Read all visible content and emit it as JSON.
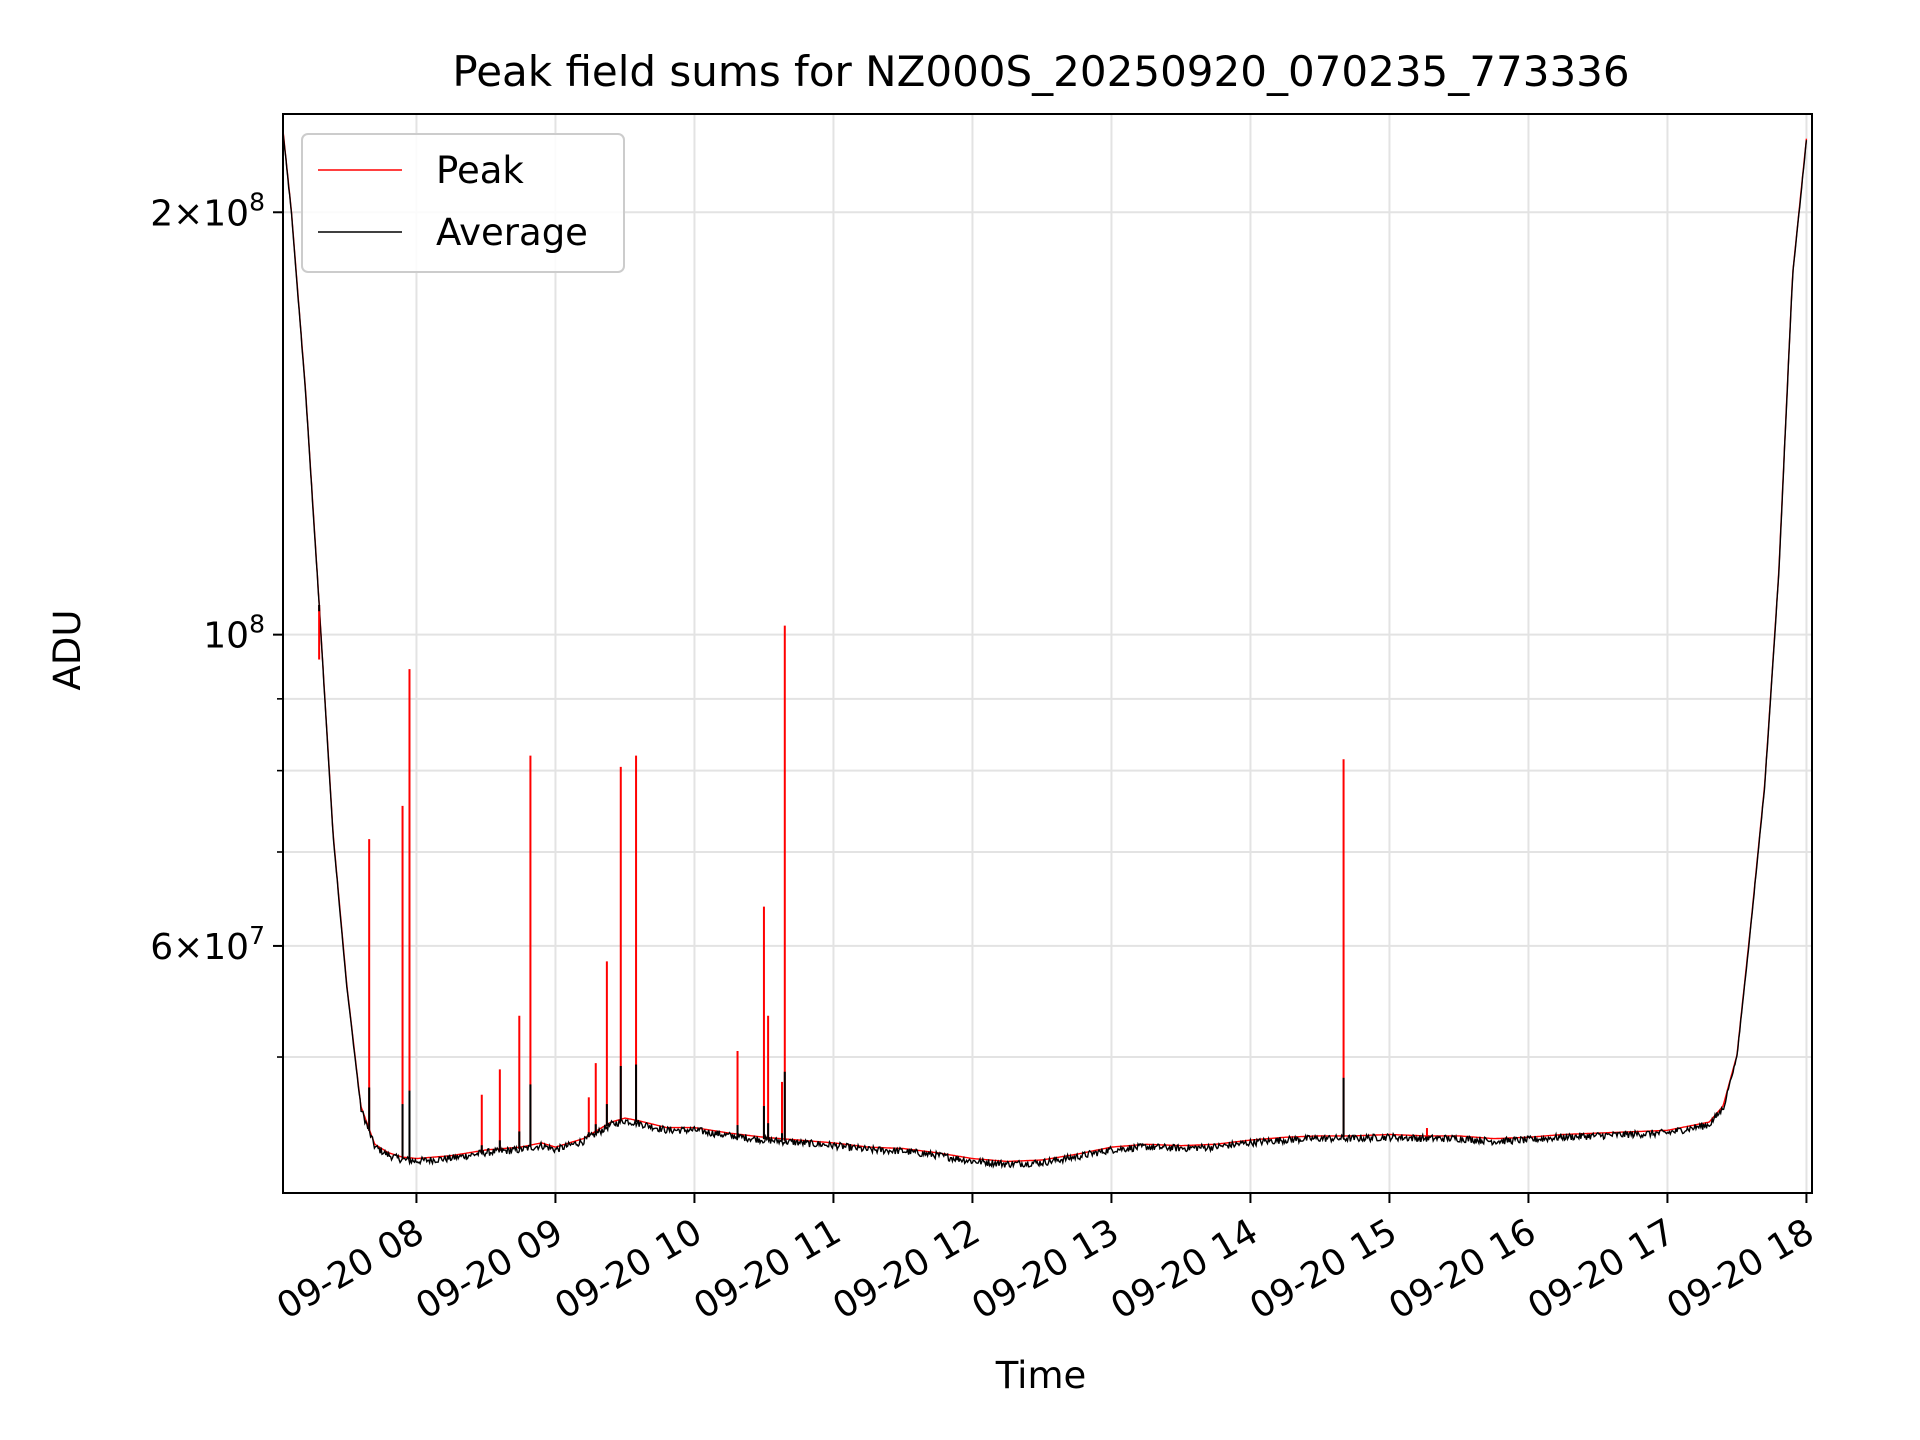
{
  "chart_data": {
    "type": "line",
    "title": "Peak field sums for NZ000S_20250920_070235_773336",
    "xlabel": "Time",
    "ylabel": "ADU",
    "x_unit": "hours",
    "y_scale": "log",
    "xlim": [
      7.04,
      18.04
    ],
    "ylim": [
      40000000,
      235000000
    ],
    "grid": true,
    "legend_position": "upper left",
    "x_ticks": [
      {
        "value": 8,
        "label": "09-20 08"
      },
      {
        "value": 9,
        "label": "09-20 09"
      },
      {
        "value": 10,
        "label": "09-20 10"
      },
      {
        "value": 11,
        "label": "09-20 11"
      },
      {
        "value": 12,
        "label": "09-20 12"
      },
      {
        "value": 13,
        "label": "09-20 13"
      },
      {
        "value": 14,
        "label": "09-20 14"
      },
      {
        "value": 15,
        "label": "09-20 15"
      },
      {
        "value": 16,
        "label": "09-20 16"
      },
      {
        "value": 17,
        "label": "09-20 17"
      },
      {
        "value": 18,
        "label": "09-20 18"
      }
    ],
    "y_ticks": [
      {
        "value": 60000000,
        "base": "6×10",
        "exp": "7"
      },
      {
        "value": 100000000,
        "base": "10",
        "exp": "8"
      },
      {
        "value": 200000000,
        "base": "2×10",
        "exp": "8"
      }
    ],
    "y_minor_ticks": [
      50000000,
      70000000,
      80000000,
      90000000
    ],
    "series": [
      {
        "name": "Average",
        "color": "#000000",
        "x": [
          7.04,
          7.1,
          7.2,
          7.3,
          7.4,
          7.5,
          7.6,
          7.7,
          7.8,
          7.9,
          8.0,
          8.25,
          8.5,
          8.75,
          8.9,
          9.0,
          9.2,
          9.4,
          9.5,
          9.6,
          9.8,
          10.0,
          10.25,
          10.5,
          10.75,
          11.0,
          11.25,
          11.5,
          11.75,
          12.0,
          12.25,
          12.5,
          12.75,
          13.0,
          13.25,
          13.5,
          13.75,
          14.0,
          14.25,
          14.5,
          14.75,
          15.0,
          15.25,
          15.5,
          15.75,
          16.0,
          16.25,
          16.5,
          16.75,
          17.0,
          17.15,
          17.3,
          17.4,
          17.5,
          17.6,
          17.7,
          17.8,
          17.9,
          18.0
        ],
        "y": [
          228000000,
          200000000,
          150000000,
          105000000,
          72000000,
          56000000,
          46000000,
          43200000,
          42600000,
          42300000,
          42200000,
          42400000,
          42800000,
          43000000,
          43300000,
          43000000,
          43600000,
          44800000,
          45100000,
          44900000,
          44400000,
          44400000,
          44000000,
          43700000,
          43500000,
          43300000,
          43000000,
          42900000,
          42600000,
          42200000,
          42000000,
          42100000,
          42500000,
          43000000,
          43200000,
          43100000,
          43200000,
          43500000,
          43700000,
          43800000,
          43800000,
          43900000,
          43800000,
          43800000,
          43600000,
          43700000,
          43900000,
          44000000,
          44100000,
          44200000,
          44500000,
          44800000,
          46000000,
          50000000,
          62000000,
          78000000,
          110000000,
          180000000,
          225000000
        ]
      },
      {
        "name": "Peak",
        "color": "#ff0000",
        "spikes": [
          {
            "x": 7.3,
            "y": 96000000
          },
          {
            "x": 7.66,
            "y": 71500000
          },
          {
            "x": 7.9,
            "y": 75500000
          },
          {
            "x": 7.95,
            "y": 94500000
          },
          {
            "x": 8.47,
            "y": 47000000
          },
          {
            "x": 8.6,
            "y": 49000000
          },
          {
            "x": 8.74,
            "y": 53500000
          },
          {
            "x": 8.82,
            "y": 82000000
          },
          {
            "x": 9.24,
            "y": 46800000
          },
          {
            "x": 9.29,
            "y": 49500000
          },
          {
            "x": 9.37,
            "y": 58500000
          },
          {
            "x": 9.47,
            "y": 80500000
          },
          {
            "x": 9.58,
            "y": 82000000
          },
          {
            "x": 10.31,
            "y": 50500000
          },
          {
            "x": 10.5,
            "y": 64000000
          },
          {
            "x": 10.53,
            "y": 53500000
          },
          {
            "x": 10.63,
            "y": 48000000
          },
          {
            "x": 10.65,
            "y": 101500000
          },
          {
            "x": 14.67,
            "y": 81500000
          },
          {
            "x": 15.27,
            "y": 44500000
          }
        ]
      }
    ]
  }
}
